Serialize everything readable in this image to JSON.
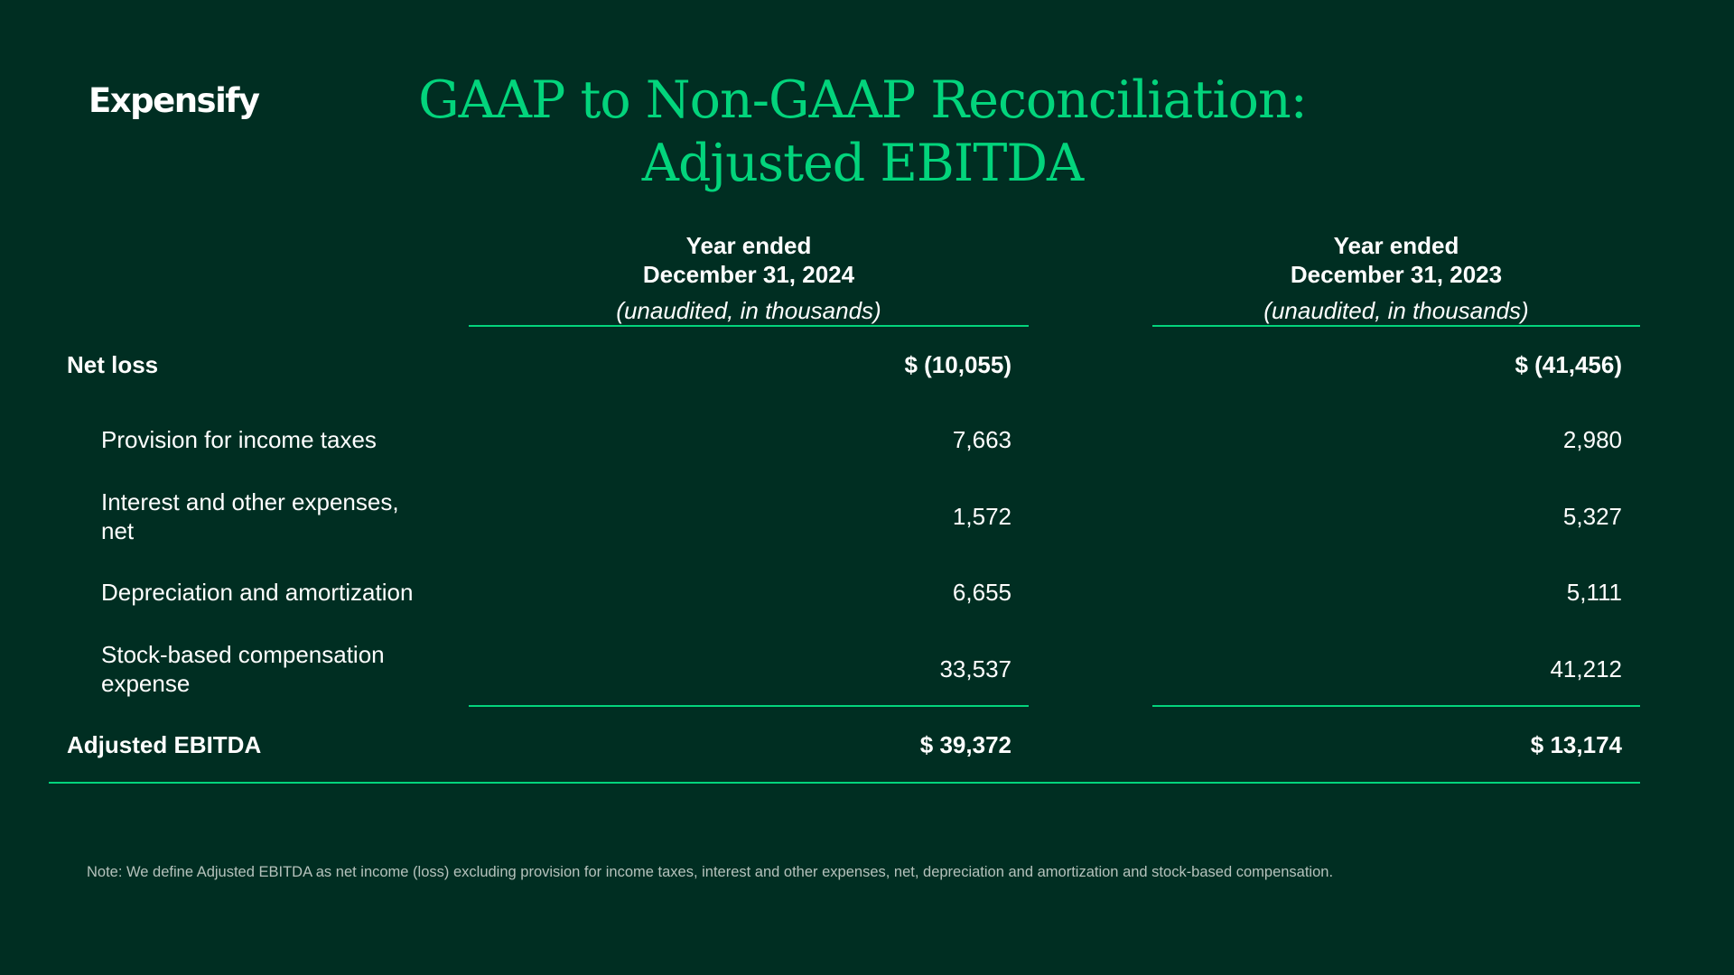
{
  "logo": "Expensify",
  "title_line1": "GAAP to Non-GAAP Reconciliation:",
  "title_line2": "Adjusted EBITDA",
  "columns": [
    {
      "heading_line1": "Year ended",
      "heading_line2": "December 31, 2024",
      "subheading": "(unaudited, in thousands)"
    },
    {
      "heading_line1": "Year ended",
      "heading_line2": "December 31, 2023",
      "subheading": "(unaudited, in thousands)"
    }
  ],
  "rows": [
    {
      "label": "Net loss",
      "v2024": "$ (10,055)",
      "v2023": "$ (41,456)"
    },
    {
      "label": "Provision for income taxes",
      "v2024": "7,663",
      "v2023": "2,980"
    },
    {
      "label_line1": "Interest and other expenses,",
      "label_line2": "net",
      "v2024": "1,572",
      "v2023": "5,327"
    },
    {
      "label": "Depreciation and amortization",
      "v2024": "6,655",
      "v2023": "5,111"
    },
    {
      "label_line1": "Stock-based compensation",
      "label_line2": "expense",
      "v2024": "33,537",
      "v2023": "41,212"
    },
    {
      "label": "Adjusted EBITDA",
      "v2024": "$ 39,372",
      "v2023": "$ 13,174"
    }
  ],
  "note": "Note: We define Adjusted EBITDA as net income (loss) excluding provision for income taxes, interest and other expenses, net, depreciation and amortization and stock-based compensation.",
  "colors": {
    "background": "#002e22",
    "accent": "#03d47c",
    "text": "#ffffff",
    "note": "#b5c2bc"
  }
}
